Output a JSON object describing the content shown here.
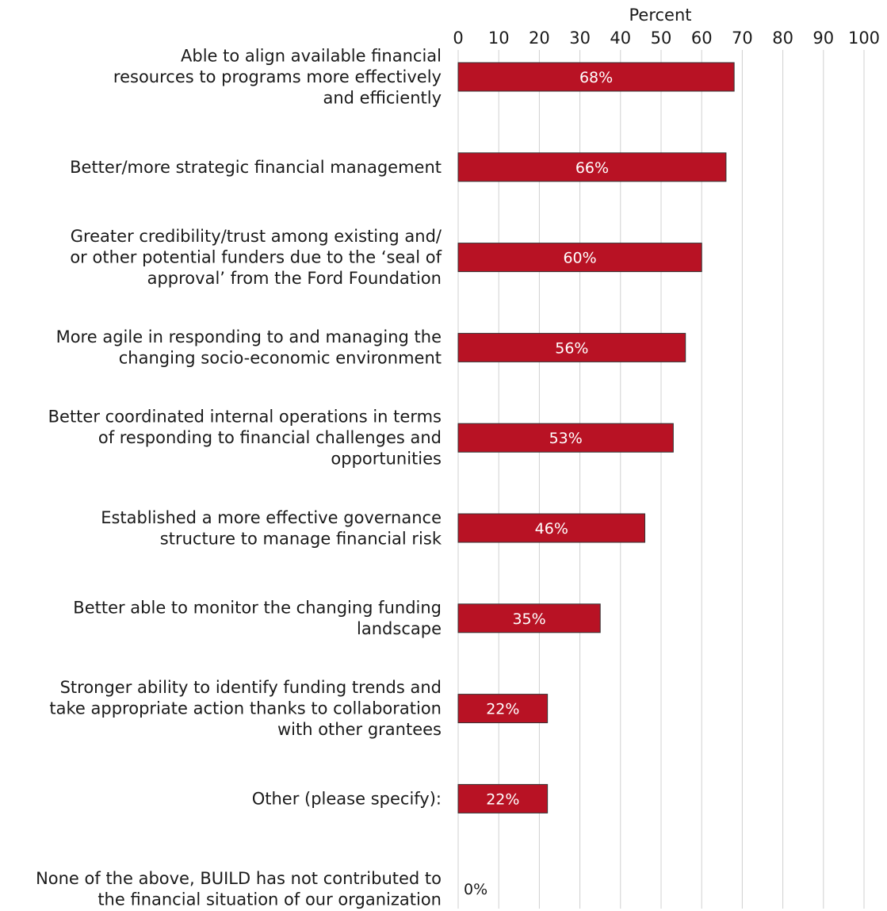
{
  "chart_data": {
    "type": "bar",
    "orientation": "horizontal",
    "xlabel": "Percent",
    "xlim": [
      0,
      100
    ],
    "xticks": [
      "0",
      "10",
      "20",
      "30",
      "40",
      "50",
      "60",
      "70",
      "80",
      "90",
      "100"
    ],
    "grid": true,
    "bar_color": "#b81224",
    "categories": [
      [
        "Able to align available financial",
        "resources to programs more effectively",
        "and efficiently"
      ],
      [
        "Better/more strategic financial management"
      ],
      [
        "Greater credibility/trust among existing and/",
        "or other potential funders due to the ‘seal of",
        "approval’ from the Ford Foundation"
      ],
      [
        "More agile in responding to and managing the",
        "changing socio-economic environment"
      ],
      [
        "Better coordinated internal operations in terms",
        "of responding to financial challenges and",
        "opportunities"
      ],
      [
        "Established a more effective governance",
        "structure to manage financial risk"
      ],
      [
        "Better able to monitor the changing funding",
        "landscape"
      ],
      [
        "Stronger ability to identify funding trends and",
        "take appropriate action thanks to collaboration",
        "with other grantees"
      ],
      [
        "Other (please specify):"
      ],
      [
        "None of the above, BUILD has not contributed to",
        "the financial situation of our organization"
      ]
    ],
    "values": [
      68,
      66,
      60,
      56,
      53,
      46,
      35,
      22,
      22,
      0
    ],
    "value_labels": [
      "68%",
      "66%",
      "60%",
      "56%",
      "53%",
      "46%",
      "35%",
      "22%",
      "22%",
      "0%"
    ]
  }
}
